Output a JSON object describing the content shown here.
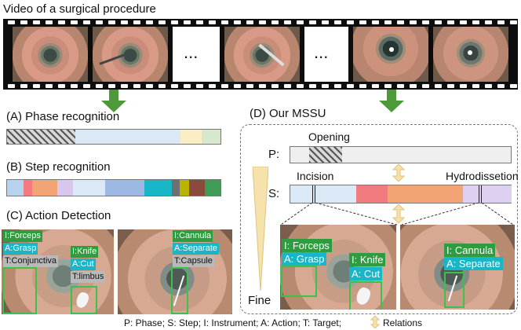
{
  "header": {
    "title": "Video of a surgical procedure"
  },
  "film": {
    "ellipsis_1": "...",
    "ellipsis_2": "..."
  },
  "sectionA": {
    "title": "(A) Phase recognition"
  },
  "sectionB": {
    "title": "(B) Step recognition"
  },
  "sectionC": {
    "title": "(C) Action Detection",
    "photo1": {
      "instrument": "I:Forceps",
      "action": "A:Grasp",
      "target": "T:Conjunctiva",
      "instrument2": "I:Knife",
      "action2": "A:Cut",
      "target2": "T:limbus"
    },
    "photo2": {
      "instrument": "I:Cannula",
      "action": "A:Separate",
      "target": "T:Capsule"
    }
  },
  "sectionD": {
    "title": "(D) Our MSSU",
    "phase_row_label": "P:",
    "step_row_label": "S:",
    "opening": "Opening",
    "incision": "Incision",
    "hydro": "Hydrodissetion",
    "fine": "Fine",
    "photo1": {
      "instrument": "I: Forceps",
      "action": "A: Grasp",
      "instrument2": "I: Knife",
      "action2": "A: Cut"
    },
    "photo2": {
      "instrument": "I: Cannula",
      "action": "A: Separate"
    }
  },
  "footer": {
    "legend": "P: Phase; S: Step; I: Instrument; A: Action; T: Target;",
    "relations": "Relations"
  },
  "colors": {
    "arrow_green": "#4e9a3b",
    "label_green": "#2e9d3f",
    "label_cyan": "#19b6c8",
    "box_green": "#3cc24b",
    "relation_arrow": "#e2c27a"
  }
}
